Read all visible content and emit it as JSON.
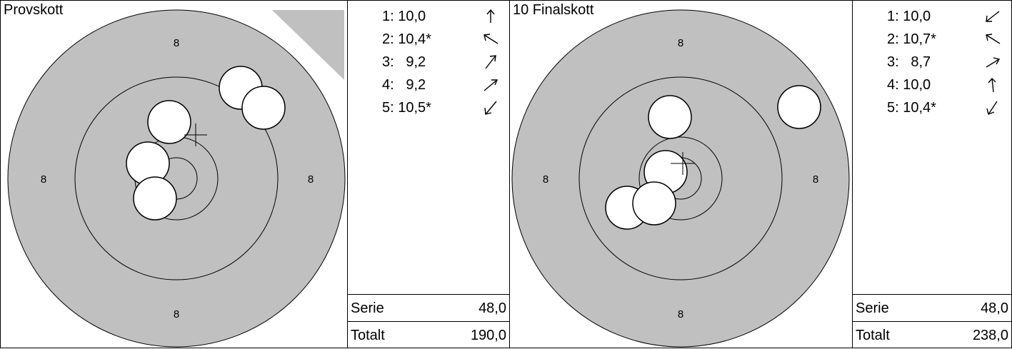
{
  "panels": [
    {
      "title": "Provskott",
      "ring_labels": [
        "8",
        "8",
        "8",
        "8"
      ],
      "shots": [
        {
          "text": "1: 10,0",
          "arrow": "arrow-up-icon"
        },
        {
          "text": "2: 10,4*",
          "arrow": "arrow-up-left-icon"
        },
        {
          "text": "3:   9,2",
          "arrow": "arrow-up-right-icon"
        },
        {
          "text": "4:   9,2",
          "arrow": "arrow-up-right-icon"
        },
        {
          "text": "5: 10,5*",
          "arrow": "arrow-down-left-icon"
        }
      ],
      "serie_label": "Serie",
      "serie_value": "48,0",
      "totalt_label": "Totalt",
      "totalt_value": "190,0"
    },
    {
      "title": "10 Finalskott",
      "ring_labels": [
        "8",
        "8",
        "8",
        "8"
      ],
      "shots": [
        {
          "text": "1: 10,0",
          "arrow": "arrow-down-left-icon"
        },
        {
          "text": "2: 10,7*",
          "arrow": "arrow-up-left-icon"
        },
        {
          "text": "3:   8,7",
          "arrow": "arrow-up-right-icon"
        },
        {
          "text": "4: 10,0",
          "arrow": "arrow-up-icon"
        },
        {
          "text": "5: 10,4*",
          "arrow": "arrow-down-left-icon"
        }
      ],
      "serie_label": "Serie",
      "serie_value": "48,0",
      "totalt_label": "Totalt",
      "totalt_value": "238,0"
    }
  ],
  "colors": {
    "target_fill": "#c0c0c0",
    "ring_line": "#000000",
    "hole_fill": "#ffffff",
    "background": "#ffffff"
  }
}
